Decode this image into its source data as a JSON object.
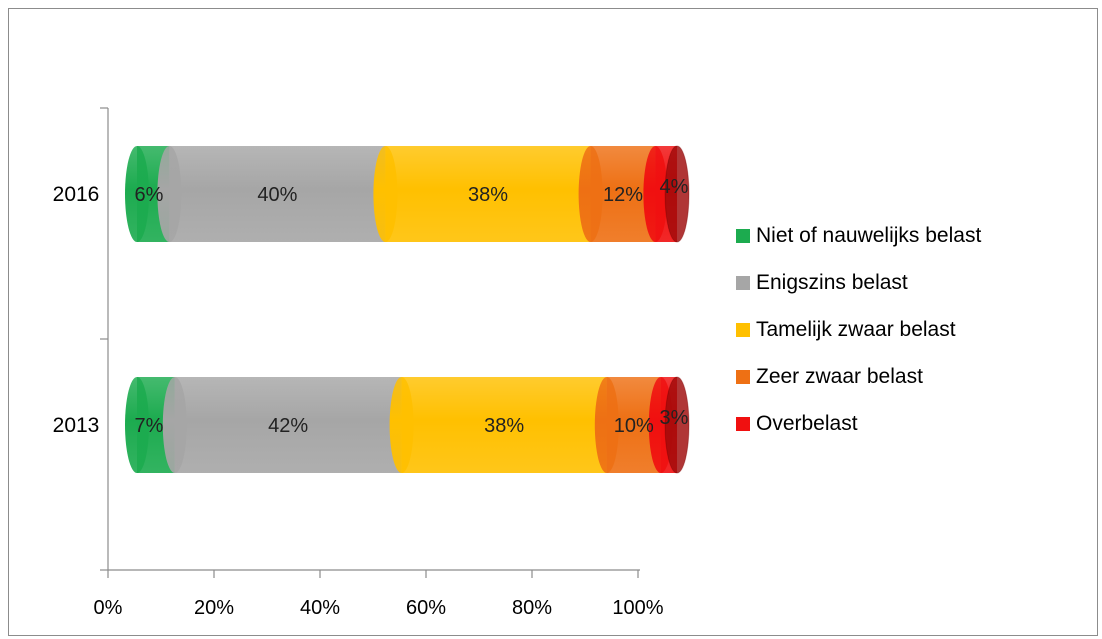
{
  "chart_data": {
    "type": "bar",
    "orientation": "horizontal",
    "stacked": "percent",
    "categories": [
      "2016",
      "2013"
    ],
    "series": [
      {
        "name": "Niet of nauwelijks belast",
        "color": "#1cab4f",
        "values": [
          6,
          7
        ],
        "labels": [
          "6%",
          "7%"
        ]
      },
      {
        "name": "Enigszins belast",
        "color": "#a6a6a6",
        "values": [
          40,
          42
        ],
        "labels": [
          "40%",
          "42%"
        ]
      },
      {
        "name": "Tamelijk zwaar belast",
        "color": "#ffc000",
        "values": [
          38,
          38
        ],
        "labels": [
          "38%",
          "38%"
        ]
      },
      {
        "name": "Zeer zwaar belast",
        "color": "#ee7014",
        "values": [
          12,
          10
        ],
        "labels": [
          "12%",
          "10%"
        ]
      },
      {
        "name": "Overbelast",
        "color": "#f01010",
        "values": [
          4,
          3
        ],
        "labels": [
          "4%",
          "3%"
        ]
      }
    ],
    "xlim": [
      0,
      100
    ],
    "xticks": [
      "0%",
      "20%",
      "40%",
      "60%",
      "80%",
      "100%"
    ],
    "grid": false,
    "legend": "right"
  }
}
